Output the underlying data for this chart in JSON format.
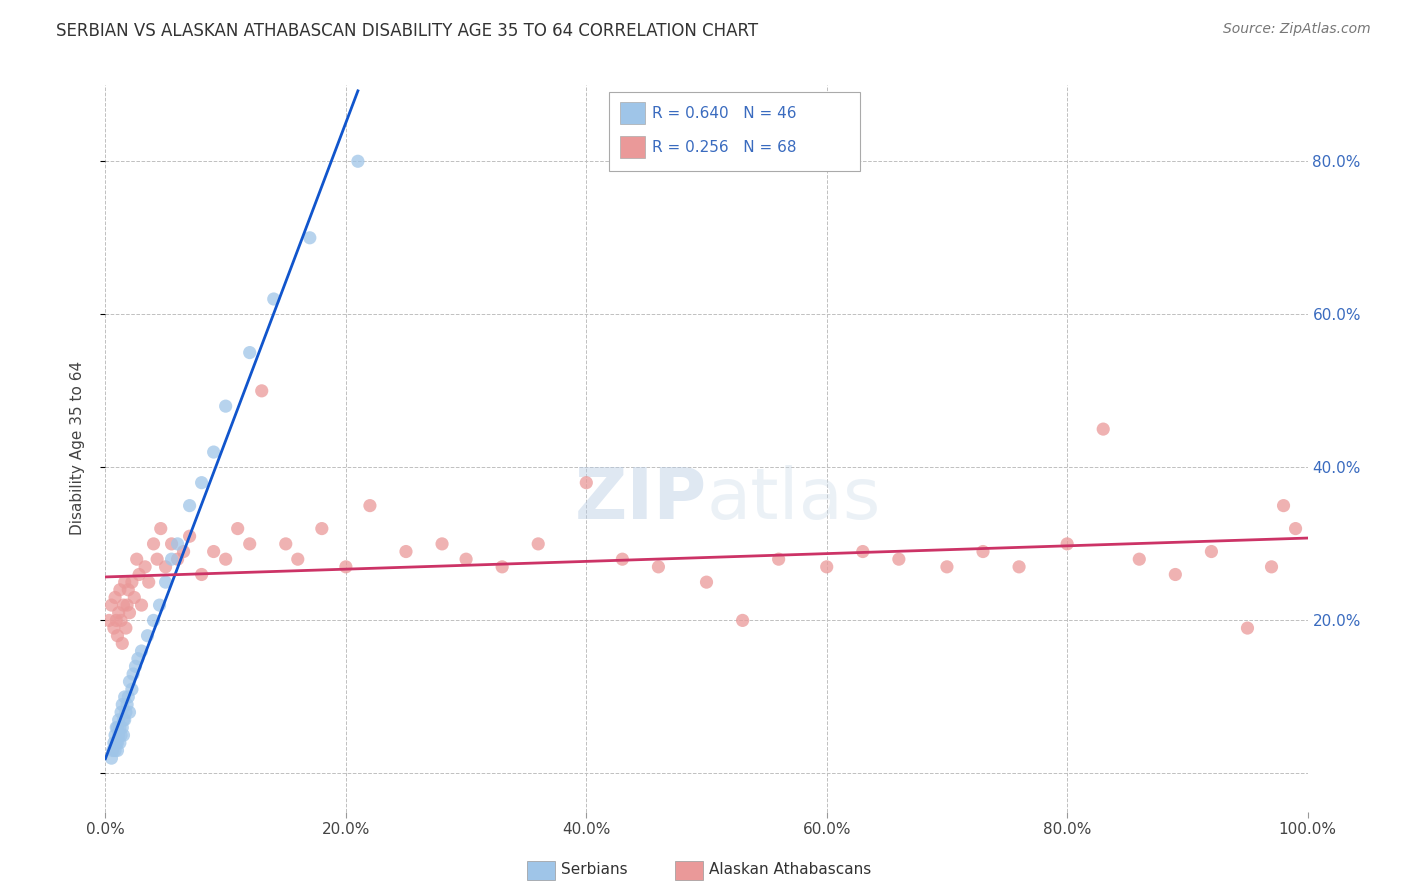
{
  "title": "SERBIAN VS ALASKAN ATHABASCAN DISABILITY AGE 35 TO 64 CORRELATION CHART",
  "source": "Source: ZipAtlas.com",
  "ylabel": "Disability Age 35 to 64",
  "xlim": [
    0.0,
    1.0
  ],
  "ylim": [
    -0.05,
    0.9
  ],
  "xticks": [
    0.0,
    0.2,
    0.4,
    0.6,
    0.8,
    1.0
  ],
  "yticks": [
    0.0,
    0.2,
    0.4,
    0.6,
    0.8
  ],
  "xticklabels": [
    "0.0%",
    "20.0%",
    "40.0%",
    "60.0%",
    "80.0%",
    "100.0%"
  ],
  "right_ytick_labels": [
    "20.0%",
    "40.0%",
    "60.0%",
    "80.0%"
  ],
  "right_ytick_vals": [
    0.2,
    0.4,
    0.6,
    0.8
  ],
  "serbian_color": "#9fc5e8",
  "athabascan_color": "#ea9999",
  "serbian_R": 0.64,
  "serbian_N": 46,
  "athabascan_R": 0.256,
  "athabascan_N": 68,
  "trendline_serbian_color": "#1155cc",
  "trendline_athabascan_color": "#cc3366",
  "watermark": "ZIPatlas",
  "background_color": "#ffffff",
  "grid_color": "#c0c0c0",
  "tick_color": "#3a6bbf",
  "serbian_x": [
    0.005,
    0.006,
    0.007,
    0.008,
    0.008,
    0.009,
    0.009,
    0.01,
    0.01,
    0.01,
    0.011,
    0.011,
    0.012,
    0.012,
    0.013,
    0.013,
    0.014,
    0.014,
    0.015,
    0.015,
    0.016,
    0.016,
    0.017,
    0.018,
    0.019,
    0.02,
    0.02,
    0.022,
    0.023,
    0.025,
    0.027,
    0.03,
    0.035,
    0.04,
    0.045,
    0.05,
    0.055,
    0.06,
    0.07,
    0.08,
    0.09,
    0.1,
    0.12,
    0.14,
    0.17,
    0.21
  ],
  "serbian_y": [
    0.02,
    0.03,
    0.04,
    0.03,
    0.05,
    0.04,
    0.06,
    0.03,
    0.04,
    0.06,
    0.05,
    0.07,
    0.04,
    0.06,
    0.05,
    0.08,
    0.06,
    0.09,
    0.05,
    0.07,
    0.07,
    0.1,
    0.08,
    0.09,
    0.1,
    0.08,
    0.12,
    0.11,
    0.13,
    0.14,
    0.15,
    0.16,
    0.18,
    0.2,
    0.22,
    0.25,
    0.28,
    0.3,
    0.35,
    0.38,
    0.42,
    0.48,
    0.55,
    0.62,
    0.7,
    0.8
  ],
  "athabascan_x": [
    0.003,
    0.005,
    0.007,
    0.008,
    0.009,
    0.01,
    0.011,
    0.012,
    0.013,
    0.014,
    0.015,
    0.016,
    0.017,
    0.018,
    0.019,
    0.02,
    0.022,
    0.024,
    0.026,
    0.028,
    0.03,
    0.033,
    0.036,
    0.04,
    0.043,
    0.046,
    0.05,
    0.055,
    0.06,
    0.065,
    0.07,
    0.08,
    0.09,
    0.1,
    0.11,
    0.12,
    0.13,
    0.15,
    0.16,
    0.18,
    0.2,
    0.22,
    0.25,
    0.28,
    0.3,
    0.33,
    0.36,
    0.4,
    0.43,
    0.46,
    0.5,
    0.53,
    0.56,
    0.6,
    0.63,
    0.66,
    0.7,
    0.73,
    0.76,
    0.8,
    0.83,
    0.86,
    0.89,
    0.92,
    0.95,
    0.97,
    0.98,
    0.99
  ],
  "athabascan_y": [
    0.2,
    0.22,
    0.19,
    0.23,
    0.2,
    0.18,
    0.21,
    0.24,
    0.2,
    0.17,
    0.22,
    0.25,
    0.19,
    0.22,
    0.24,
    0.21,
    0.25,
    0.23,
    0.28,
    0.26,
    0.22,
    0.27,
    0.25,
    0.3,
    0.28,
    0.32,
    0.27,
    0.3,
    0.28,
    0.29,
    0.31,
    0.26,
    0.29,
    0.28,
    0.32,
    0.3,
    0.5,
    0.3,
    0.28,
    0.32,
    0.27,
    0.35,
    0.29,
    0.3,
    0.28,
    0.27,
    0.3,
    0.38,
    0.28,
    0.27,
    0.25,
    0.2,
    0.28,
    0.27,
    0.29,
    0.28,
    0.27,
    0.29,
    0.27,
    0.3,
    0.45,
    0.28,
    0.26,
    0.29,
    0.19,
    0.27,
    0.35,
    0.32
  ]
}
